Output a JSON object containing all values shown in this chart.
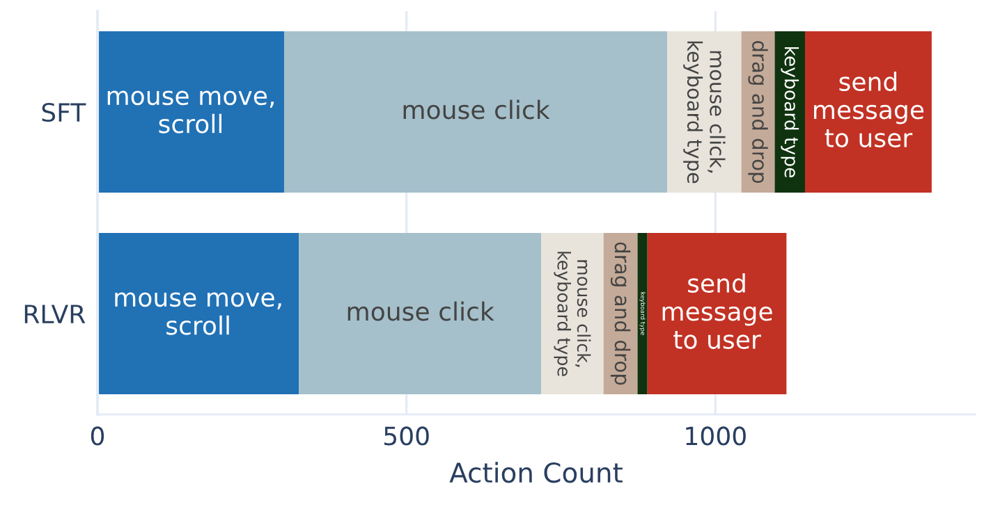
{
  "chart_data": {
    "type": "bar",
    "orientation": "horizontal",
    "stacked": true,
    "xlabel": "Action Count",
    "categories": [
      "SFT",
      "RLVR"
    ],
    "series": [
      {
        "name": "mouse move,\nscroll",
        "color": "#2171b5",
        "values": [
          302,
          326
        ]
      },
      {
        "name": "mouse click",
        "color": "#a5c0cb",
        "values": [
          620,
          392
        ]
      },
      {
        "name": "mouse click,\nkeyboard type",
        "color": "#e8e4dc",
        "values": [
          120,
          101
        ]
      },
      {
        "name": "drag and drop",
        "color": "#c4aa98",
        "values": [
          54,
          55
        ]
      },
      {
        "name": "keyboard type",
        "color": "#10330f",
        "values": [
          49,
          16
        ]
      },
      {
        "name": "send\nmessage\nto user",
        "color": "#c13224",
        "values": [
          205,
          225
        ]
      }
    ],
    "xlim": [
      0,
      1420
    ],
    "xticks": [
      0,
      500,
      1000
    ],
    "grid": "x",
    "legend": false
  }
}
